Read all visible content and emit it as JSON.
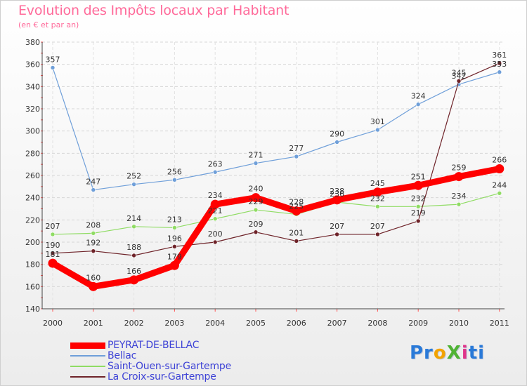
{
  "title": "Evolution des Impôts locaux par Habitant",
  "subtitle": "(en € et par an)",
  "logo": {
    "text": "ProXiti",
    "parts": [
      "Pr",
      "o",
      "X",
      "i",
      "ti"
    ]
  },
  "chart_data": {
    "type": "line",
    "title": "Evolution des Impôts locaux par Habitant",
    "subtitle": "(en € et par an)",
    "xlabel": "",
    "ylabel": "",
    "x": [
      2000,
      2001,
      2002,
      2003,
      2004,
      2005,
      2006,
      2007,
      2008,
      2009,
      2010,
      2011
    ],
    "ylim": [
      140,
      380
    ],
    "yticks": [
      140,
      160,
      180,
      200,
      220,
      240,
      260,
      280,
      300,
      320,
      340,
      360,
      380
    ],
    "grid": true,
    "legend_position": "bottom-left",
    "series": [
      {
        "name": "PEYRAT-DE-BELLAC",
        "color": "#ff0000",
        "values": [
          181,
          160,
          166,
          179,
          234,
          240,
          228,
          238,
          245,
          251,
          259,
          266
        ]
      },
      {
        "name": "Bellac",
        "color": "#6f9fd9",
        "values": [
          357,
          247,
          252,
          256,
          263,
          271,
          277,
          290,
          301,
          324,
          342,
          353
        ]
      },
      {
        "name": "Saint-Ouen-sur-Gartempe",
        "color": "#8fdc63",
        "values": [
          207,
          208,
          214,
          213,
          221,
          229,
          225,
          236,
          232,
          232,
          234,
          244
        ]
      },
      {
        "name": "La Croix-sur-Gartempe",
        "color": "#6e2329",
        "values": [
          190,
          192,
          188,
          196,
          200,
          209,
          201,
          207,
          207,
          219,
          345,
          361
        ]
      }
    ]
  }
}
